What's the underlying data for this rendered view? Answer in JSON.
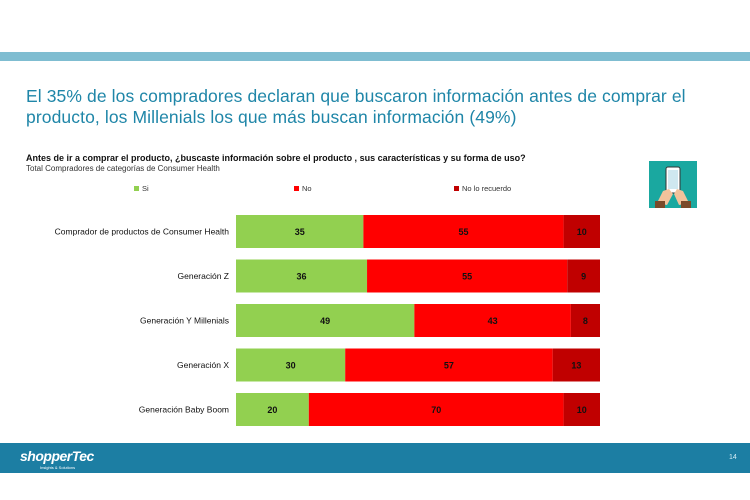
{
  "headline": "El 35% de los compradores declaran que buscaron información antes de comprar el producto, los Millenials los que más buscan información (49%)",
  "question": "Antes de ir a comprar el producto, ¿buscaste información sobre el producto , sus características y su forma de uso?",
  "subtitle": "Total Compradores de categorías de Consumer Health",
  "footer": {
    "logo_text": "shopperTec",
    "logo_sub": "Insights & Solutions",
    "page_number": "14"
  },
  "icon": "phone-in-hand-icon",
  "chart_data": {
    "type": "bar",
    "orientation": "horizontal",
    "stacked": true,
    "categories": [
      "Comprador de productos de Consumer Health",
      "Generación Z",
      "Generación Y Millenials",
      "Generación X",
      "Generación Baby Boom"
    ],
    "series": [
      {
        "name": "Si",
        "color": "#92d050",
        "values": [
          35,
          36,
          49,
          30,
          20
        ]
      },
      {
        "name": "No",
        "color": "#ff0000",
        "values": [
          55,
          55,
          43,
          57,
          70
        ]
      },
      {
        "name": "No lo recuerdo",
        "color": "#c00000",
        "values": [
          10,
          9,
          8,
          13,
          10
        ]
      }
    ],
    "xlim": [
      0,
      100
    ],
    "legend_position": "top",
    "grid": false
  }
}
